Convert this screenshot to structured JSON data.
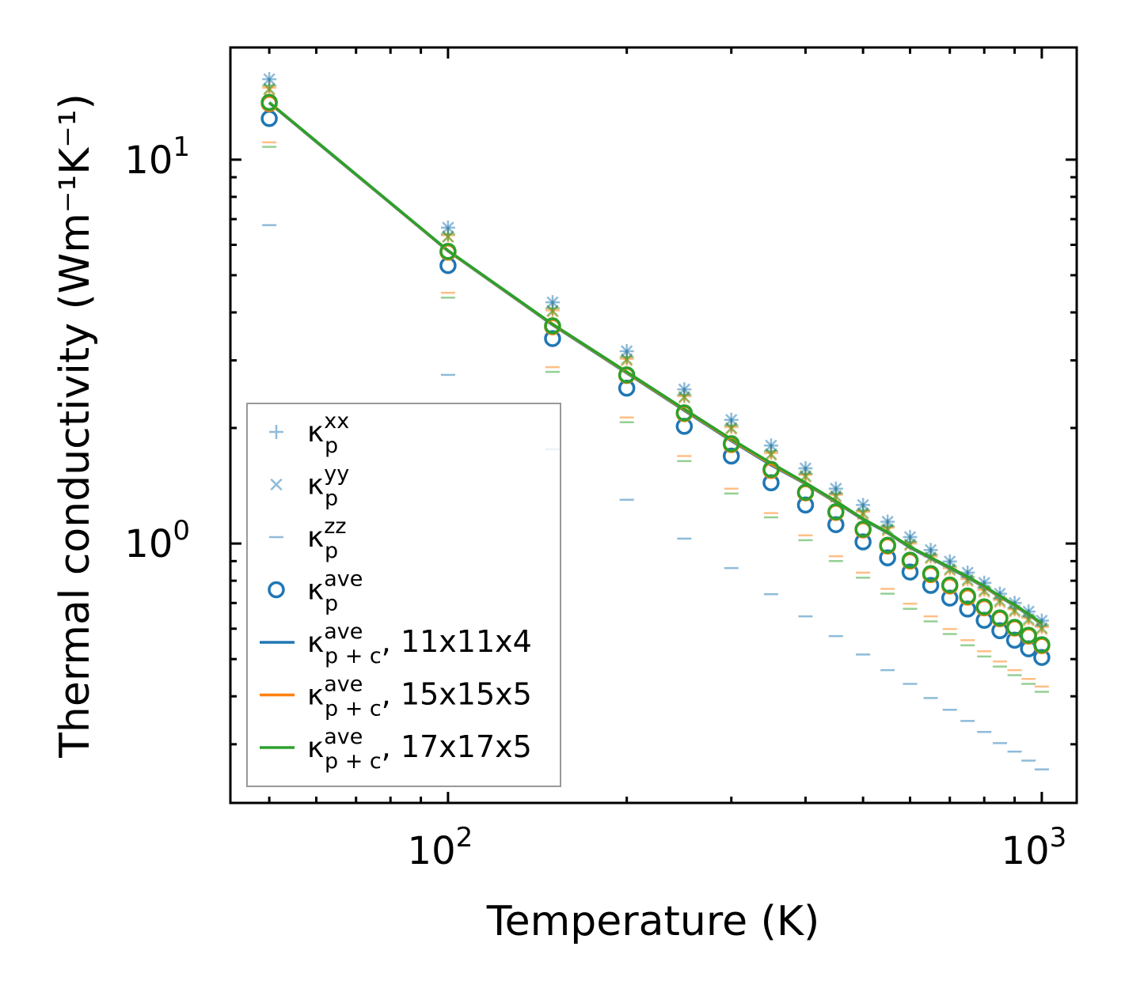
{
  "chart_data": {
    "type": "scatter",
    "xscale": "log",
    "yscale": "log",
    "xlabel": "Temperature (K)",
    "ylabel": "Thermal conductivity (Wm⁻¹K⁻¹)",
    "xlim": [
      43,
      1145
    ],
    "ylim": [
      0.211,
      19.6
    ],
    "xticks": [
      {
        "value": 100,
        "base": "10",
        "exp": "2"
      },
      {
        "value": 1000,
        "base": "10",
        "exp": "3"
      }
    ],
    "yticks": [
      {
        "value": 1,
        "base": "10",
        "exp": "0"
      },
      {
        "value": 10,
        "base": "10",
        "exp": "1"
      }
    ],
    "grid": false,
    "legend_position": "lower-left",
    "colors": {
      "blue": "#1f77b4",
      "orange": "#ff7f0e",
      "green": "#2ca02c"
    },
    "x": [
      50,
      100,
      150,
      200,
      250,
      300,
      350,
      400,
      450,
      500,
      550,
      600,
      650,
      700,
      750,
      800,
      850,
      900,
      950,
      1000
    ],
    "series": [
      {
        "name": "kp_zz_11x11x4",
        "marker": "hline",
        "color": "#1f77b4",
        "alpha": 0.5,
        "values": [
          6.75,
          2.75,
          1.76,
          1.3,
          1.03,
          0.863,
          0.738,
          0.646,
          0.574,
          0.514,
          0.468,
          0.431,
          0.396,
          0.369,
          0.345,
          0.323,
          0.302,
          0.287,
          0.272,
          0.258
        ]
      },
      {
        "name": "kp_zz_15x15x5",
        "marker": "hline",
        "color": "#ff7f0e",
        "alpha": 0.5,
        "values": [
          11.1,
          4.5,
          2.88,
          2.13,
          1.69,
          1.39,
          1.2,
          1.05,
          0.927,
          0.84,
          0.762,
          0.697,
          0.646,
          0.599,
          0.56,
          0.524,
          0.493,
          0.468,
          0.444,
          0.424
        ]
      },
      {
        "name": "kp_zz_17x17x5",
        "marker": "hline",
        "color": "#2ca02c",
        "alpha": 0.5,
        "values": [
          10.8,
          4.37,
          2.8,
          2.07,
          1.64,
          1.35,
          1.17,
          1.02,
          0.9,
          0.815,
          0.74,
          0.676,
          0.627,
          0.581,
          0.543,
          0.508,
          0.478,
          0.454,
          0.431,
          0.411
        ]
      },
      {
        "name": "kp_xx_15x15x5",
        "marker": "plus",
        "color": "#ff7f0e",
        "alpha": 0.5,
        "values": [
          15.4,
          6.35,
          4.05,
          3.03,
          2.42,
          2.01,
          1.72,
          1.51,
          1.34,
          1.21,
          1.1,
          1.0,
          0.925,
          0.862,
          0.808,
          0.758,
          0.713,
          0.674,
          0.64,
          0.606
        ]
      },
      {
        "name": "kp_yy_15x15x5",
        "marker": "cross",
        "color": "#ff7f0e",
        "alpha": 0.5,
        "values": [
          15.2,
          6.3,
          4.02,
          3.0,
          2.4,
          1.99,
          1.7,
          1.49,
          1.32,
          1.19,
          1.08,
          0.99,
          0.915,
          0.852,
          0.798,
          0.748,
          0.703,
          0.664,
          0.63,
          0.598
        ]
      },
      {
        "name": "kp_xx_17x17x5",
        "marker": "plus",
        "color": "#2ca02c",
        "alpha": 0.5,
        "values": [
          15.6,
          6.4,
          4.1,
          3.06,
          2.44,
          2.03,
          1.74,
          1.52,
          1.35,
          1.22,
          1.11,
          1.01,
          0.935,
          0.872,
          0.818,
          0.768,
          0.72,
          0.68,
          0.646,
          0.612
        ]
      },
      {
        "name": "kp_yy_17x17x5",
        "marker": "cross",
        "color": "#2ca02c",
        "alpha": 0.5,
        "values": [
          15.3,
          6.3,
          4.04,
          3.02,
          2.41,
          2.0,
          1.71,
          1.5,
          1.33,
          1.2,
          1.09,
          0.995,
          0.92,
          0.858,
          0.805,
          0.755,
          0.71,
          0.67,
          0.636,
          0.603
        ]
      },
      {
        "name": "kp_xx_11x11x4",
        "marker": "plus",
        "color": "#1f77b4",
        "alpha": 0.5,
        "values": [
          16.2,
          6.65,
          4.25,
          3.17,
          2.52,
          2.1,
          1.8,
          1.57,
          1.39,
          1.26,
          1.14,
          1.04,
          0.962,
          0.898,
          0.84,
          0.79,
          0.74,
          0.7,
          0.665,
          0.63
        ]
      },
      {
        "name": "kp_yy_11x11x4",
        "marker": "cross",
        "color": "#1f77b4",
        "alpha": 0.5,
        "values": [
          16.2,
          6.65,
          4.25,
          3.17,
          2.52,
          2.1,
          1.8,
          1.57,
          1.39,
          1.26,
          1.14,
          1.04,
          0.962,
          0.898,
          0.84,
          0.79,
          0.74,
          0.7,
          0.665,
          0.63
        ]
      },
      {
        "name": "kp_ave_11x11x4",
        "marker": "circle",
        "color": "#1f77b4",
        "alpha": 1,
        "values": [
          12.8,
          5.3,
          3.42,
          2.54,
          2.02,
          1.69,
          1.44,
          1.26,
          1.12,
          1.01,
          0.918,
          0.843,
          0.778,
          0.721,
          0.675,
          0.631,
          0.593,
          0.56,
          0.532,
          0.505
        ]
      },
      {
        "name": "kp_ave_15x15x5",
        "marker": "circle",
        "color": "#ff7f0e",
        "alpha": 1,
        "values": [
          14.0,
          5.74,
          3.67,
          2.74,
          2.18,
          1.81,
          1.55,
          1.355,
          1.205,
          1.085,
          0.985,
          0.9,
          0.83,
          0.775,
          0.725,
          0.68,
          0.637,
          0.602,
          0.574,
          0.542
        ]
      },
      {
        "name": "kp_ave_17x17x5",
        "marker": "circle",
        "color": "#2ca02c",
        "alpha": 1,
        "values": [
          14.1,
          5.77,
          3.69,
          2.75,
          2.19,
          1.82,
          1.56,
          1.36,
          1.21,
          1.09,
          0.99,
          0.905,
          0.835,
          0.78,
          0.73,
          0.684,
          0.64,
          0.605,
          0.577,
          0.545
        ]
      },
      {
        "name": "kpc_ave_11x11x4",
        "marker": "line",
        "color": "#1f77b4",
        "alpha": 1,
        "values": [
          14.05,
          5.78,
          3.71,
          2.78,
          2.22,
          1.85,
          1.6,
          1.43,
          1.28,
          1.155,
          1.065,
          0.975,
          0.915,
          0.862,
          0.815,
          0.77,
          0.726,
          0.689,
          0.652,
          0.617
        ]
      },
      {
        "name": "kpc_ave_15x15x5",
        "marker": "line",
        "color": "#ff7f0e",
        "alpha": 1,
        "values": [
          14.08,
          5.79,
          3.72,
          2.79,
          2.23,
          1.86,
          1.61,
          1.435,
          1.285,
          1.158,
          1.068,
          0.978,
          0.918,
          0.865,
          0.818,
          0.772,
          0.728,
          0.691,
          0.654,
          0.618
        ]
      },
      {
        "name": "kpc_ave_17x17x5",
        "marker": "line",
        "color": "#2ca02c",
        "alpha": 1,
        "values": [
          14.1,
          5.8,
          3.73,
          2.8,
          2.24,
          1.87,
          1.62,
          1.44,
          1.29,
          1.16,
          1.07,
          0.98,
          0.92,
          0.867,
          0.82,
          0.775,
          0.73,
          0.693,
          0.655,
          0.62
        ]
      }
    ],
    "legend": [
      {
        "marker": "plus",
        "color": "#1f77b4",
        "alpha": 0.5,
        "sym": "κ",
        "sub": "p",
        "sup": "xx",
        "suffix": ""
      },
      {
        "marker": "cross",
        "color": "#1f77b4",
        "alpha": 0.5,
        "sym": "κ",
        "sub": "p",
        "sup": "yy",
        "suffix": ""
      },
      {
        "marker": "hline",
        "color": "#1f77b4",
        "alpha": 0.5,
        "sym": "κ",
        "sub": "p",
        "sup": "zz",
        "suffix": ""
      },
      {
        "marker": "circle",
        "color": "#1f77b4",
        "alpha": 1,
        "sym": "κ",
        "sub": "p",
        "sup": "ave",
        "suffix": ""
      },
      {
        "marker": "line",
        "color": "#1f77b4",
        "alpha": 1,
        "sym": "κ",
        "sub": "p + c",
        "sup": "ave",
        "suffix": ", 11x11x4"
      },
      {
        "marker": "line",
        "color": "#ff7f0e",
        "alpha": 1,
        "sym": "κ",
        "sub": "p + c",
        "sup": "ave",
        "suffix": ", 15x15x5"
      },
      {
        "marker": "line",
        "color": "#2ca02c",
        "alpha": 1,
        "sym": "κ",
        "sub": "p + c",
        "sup": "ave",
        "suffix": ", 17x17x5"
      }
    ]
  }
}
